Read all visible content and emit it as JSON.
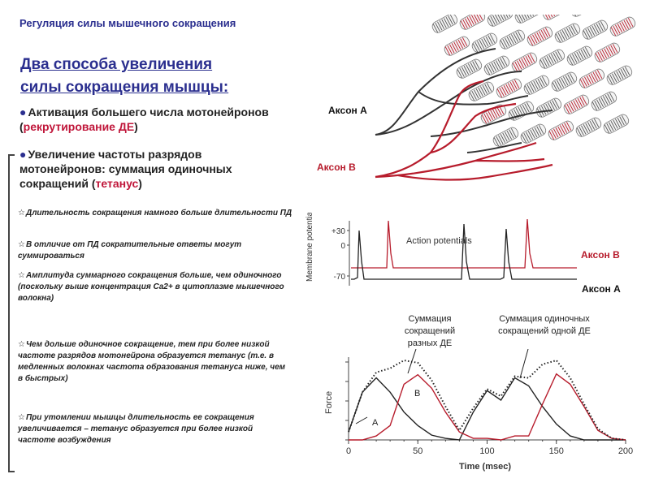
{
  "header": {
    "title": "Регуляция силы мышечного сокращения"
  },
  "heading": {
    "line1": "Два способа увеличения",
    "line2": "силы сокращения мышцы:"
  },
  "bullets": [
    {
      "text": "Активация большего числа мотонейронов (",
      "highlight": "рекрутирование ДЕ",
      "tail": ")"
    },
    {
      "text": "Увеличение частоты разрядов мотонейронов: суммация одиночных сокращений (",
      "highlight": "тетанус",
      "tail": ")"
    }
  ],
  "notes": [
    "Длительность сокращения намного больше длительности ПД",
    "В отличие от ПД сократительные ответы могут суммироваться",
    "Амплитуда суммарного сокращения больше, чем одиночного (поскольку выше концентрация Ca2+ в цитоплазме мышечного волокна)",
    "Чем дольше одиночное сокращение, тем при более низкой частоте разрядов мотонейрона образуется тетанус (т.е. в медленных волокнах частота образования тетануса ниже, чем в быстрых)",
    "При утомлении мышцы длительность ее сокращения увеличивается – тетанус образуется при более низкой частоте возбуждения"
  ],
  "colors": {
    "accent": "#2b2f8f",
    "red": "#c0163a",
    "axon_a": "#333333",
    "axon_b": "#b71c2c"
  },
  "diagram": {
    "axon_a": "Аксон А",
    "axon_b": "Аксон В"
  },
  "membrane_chart": {
    "ylabel": "Membrane potential (mV)",
    "ticks": [
      "+30",
      "0",
      "-70"
    ],
    "annotation": "Action potentials",
    "label_b": "Аксон В",
    "label_a": "Аксон А"
  },
  "force_chart": {
    "ylabel": "Force",
    "xlabel": "Time (msec)",
    "xticks": [
      "0",
      "50",
      "100",
      "150",
      "200"
    ],
    "caption_left": "Суммация сокращений разных ДЕ",
    "caption_right": "Суммация одиночных сокращений одной ДЕ",
    "mark_a": "A",
    "mark_b": "B"
  },
  "chart_data": [
    {
      "type": "line",
      "ylabel": "Membrane potential (mV)",
      "yticks": [
        30,
        0,
        -70
      ],
      "series": [
        {
          "name": "Аксон В",
          "spikes_approx": [
            30,
            125
          ]
        },
        {
          "name": "Аксон А",
          "spikes_approx": [
            5,
            80,
            110
          ]
        }
      ]
    },
    {
      "type": "line",
      "xlabel": "Time (msec)",
      "ylabel": "Force",
      "xlim": [
        0,
        200
      ],
      "x": [
        0,
        10,
        20,
        30,
        40,
        50,
        60,
        70,
        80,
        90,
        100,
        110,
        120,
        130,
        140,
        150,
        160,
        170,
        180,
        190,
        200
      ],
      "series": [
        {
          "name": "A",
          "values": [
            0.1,
            0.6,
            0.78,
            0.6,
            0.35,
            0.18,
            0.06,
            0.02,
            0.0,
            0.35,
            0.62,
            0.5,
            0.78,
            0.68,
            0.42,
            0.2,
            0.05,
            0.0,
            0.0,
            0.0,
            0.0
          ]
        },
        {
          "name": "B",
          "values": [
            0.0,
            0.0,
            0.05,
            0.18,
            0.7,
            0.82,
            0.65,
            0.35,
            0.1,
            0.02,
            0.02,
            0.0,
            0.05,
            0.05,
            0.45,
            0.83,
            0.7,
            0.42,
            0.12,
            0.02,
            0.0
          ]
        },
        {
          "name": "sum",
          "values": [
            0.1,
            0.6,
            0.85,
            0.9,
            1.0,
            0.97,
            0.75,
            0.42,
            0.12,
            0.4,
            0.64,
            0.55,
            0.8,
            0.78,
            0.95,
            1.0,
            0.78,
            0.45,
            0.14,
            0.02,
            0.0
          ]
        }
      ]
    }
  ]
}
